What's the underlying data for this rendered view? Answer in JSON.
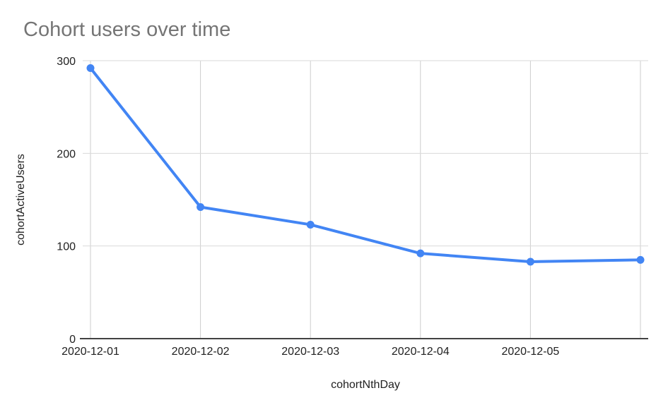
{
  "chart_data": {
    "type": "line",
    "title": "Cohort users over time",
    "xlabel": "cohortNthDay",
    "ylabel": "cohortActiveUsers",
    "categories": [
      "2020-12-01",
      "2020-12-02",
      "2020-12-03",
      "2020-12-04",
      "2020-12-05",
      ""
    ],
    "series": [
      {
        "name": "cohortActiveUsers",
        "values": [
          292,
          142,
          123,
          92,
          83,
          85
        ]
      }
    ],
    "ylim": [
      0,
      300
    ],
    "yticks": [
      0,
      100,
      200,
      300
    ],
    "grid": true,
    "legend": "none",
    "colors": {
      "line": "#4285f4",
      "point": "#4285f4",
      "grid_horizontal": "#dadada",
      "grid_vertical": "#cccccc",
      "axis_line": "#424242",
      "title": "#757575",
      "tick_label": "#212121"
    }
  }
}
